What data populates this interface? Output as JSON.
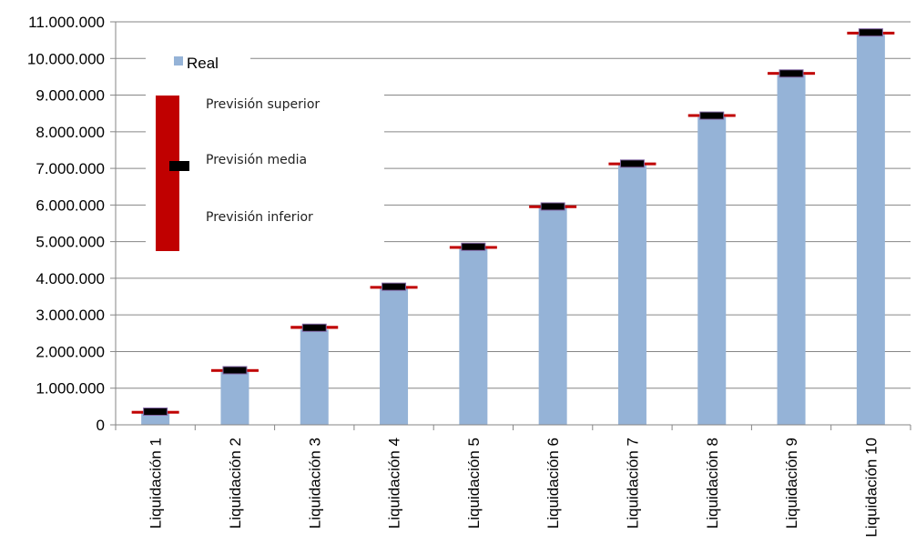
{
  "chart_data": {
    "type": "bar",
    "title": "",
    "xlabel": "",
    "ylabel": "",
    "ylim": [
      0,
      11000000
    ],
    "grid": true,
    "y_ticks": [
      0,
      1000000,
      2000000,
      3000000,
      4000000,
      5000000,
      6000000,
      7000000,
      8000000,
      9000000,
      10000000,
      11000000
    ],
    "y_tick_labels": [
      "0",
      "1.000.000",
      "2.000.000",
      "3.000.000",
      "4.000.000",
      "5.000.000",
      "6.000.000",
      "7.000.000",
      "8.000.000",
      "9.000.000",
      "10.000.000",
      "11.000.000"
    ],
    "categories": [
      "Liquidación 1",
      "Liquidación 2",
      "Liquidación 3",
      "Liquidación 4",
      "Liquidación 5",
      "Liquidación 6",
      "Liquidación 7",
      "Liquidación 8",
      "Liquidación 9",
      "Liquidación 10"
    ],
    "series": [
      {
        "name": "Real",
        "color": "#95b3d7",
        "values": [
          350000,
          1450000,
          2600000,
          3750000,
          4850000,
          5950000,
          7100000,
          8400000,
          9550000,
          10650000
        ]
      }
    ],
    "forecast": {
      "upper": [
        380000,
        1520000,
        2700000,
        3790000,
        4880000,
        5990000,
        7160000,
        8480000,
        9630000,
        10730000
      ],
      "middle": [
        360000,
        1490000,
        2650000,
        3770000,
        4860000,
        5960000,
        7130000,
        8440000,
        9590000,
        10710000
      ],
      "lower": [
        340000,
        1460000,
        2620000,
        3750000,
        4840000,
        5940000,
        7110000,
        8410000,
        9560000,
        10690000
      ],
      "range_color": "#c00000",
      "middle_color": "#000000"
    },
    "legend": {
      "placement": "top-left",
      "real_label": "Real",
      "upper_label": "Previsión superior",
      "middle_label": "Previsión media",
      "lower_label": "Previsión inferior"
    }
  }
}
